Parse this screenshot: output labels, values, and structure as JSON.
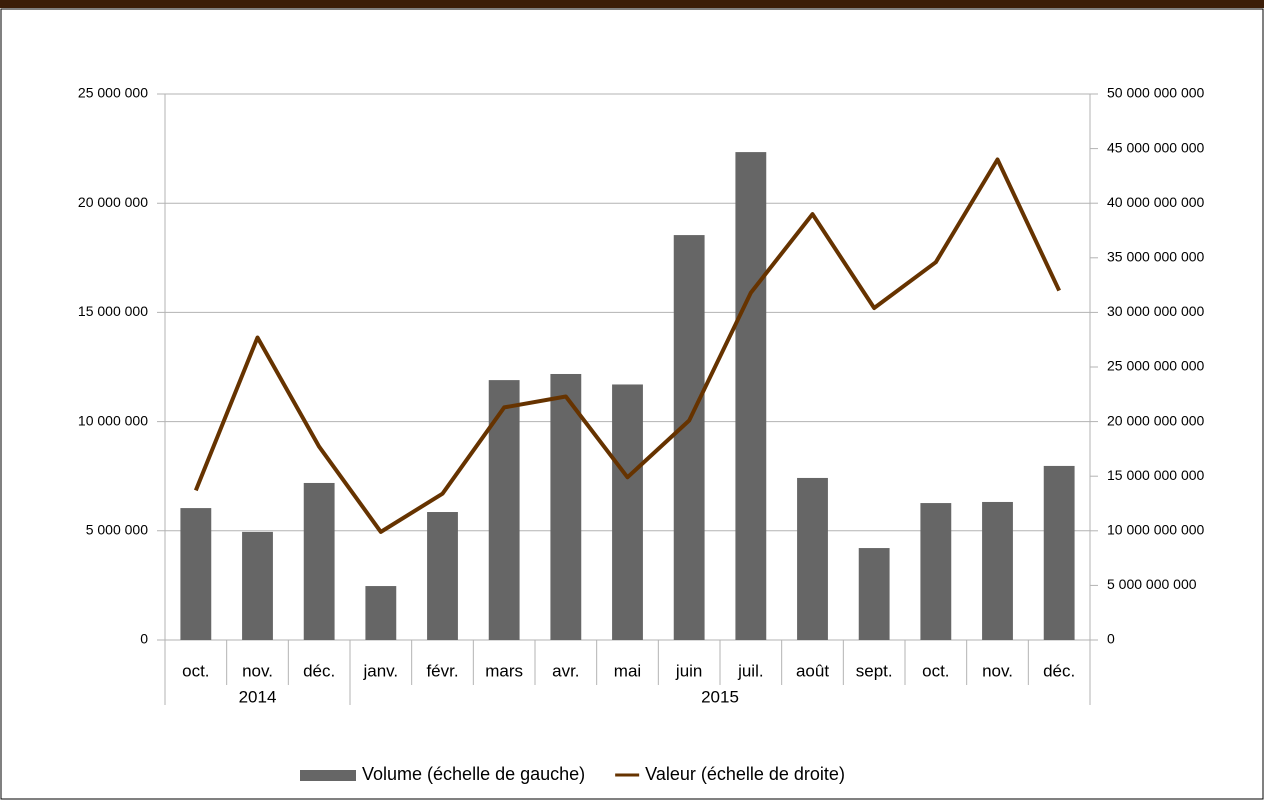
{
  "chart_data": {
    "type": "bar_line",
    "categories": [
      "oct.",
      "nov.",
      "déc.",
      "janv.",
      "févr.",
      "mars",
      "avr.",
      "mai",
      "juin",
      "juil.",
      "août",
      "sept.",
      "oct.",
      "nov.",
      "déc."
    ],
    "category_groups": [
      {
        "label": "2014",
        "span": 3
      },
      {
        "label": "2015",
        "span": 12
      }
    ],
    "series": [
      {
        "name": "Volume (échelle de gauche)",
        "type": "bar",
        "color": "#666666",
        "values": [
          6040000,
          4950000,
          7190000,
          2470000,
          5860000,
          11900000,
          12180000,
          11700000,
          18540000,
          22340000,
          7420000,
          4210000,
          6270000,
          6320000,
          7970000
        ]
      },
      {
        "name": "Valeur (échelle de droite)",
        "type": "line",
        "axis": "y2",
        "color": "#663300",
        "values": [
          13700000000,
          27700000000,
          17700000000,
          9900000000,
          13400000000,
          21300000000,
          22300000000,
          14900000000,
          20100000000,
          31800000000,
          39000000000,
          30400000000,
          34600000000,
          44000000000,
          32000000000
        ]
      }
    ],
    "ylim": [
      0,
      25000000
    ],
    "yticks": [
      0,
      {
        "value": 5000000,
        "label": "5 000 000"
      },
      {
        "value": 10000000,
        "label": "10 000 000"
      },
      {
        "value": 15000000,
        "label": "15 000 000"
      },
      {
        "value": 20000000,
        "label": "20 000 000"
      },
      {
        "value": 25000000,
        "label": "25 000 000"
      }
    ],
    "y2lim": [
      0,
      50000000000
    ],
    "y2ticks": [
      0,
      {
        "value": 5000000000,
        "label": "5 000 000 000"
      },
      {
        "value": 10000000000,
        "label": "10 000 000 000"
      },
      {
        "value": 15000000000,
        "label": "15 000 000 000"
      },
      {
        "value": 20000000000,
        "label": "20 000 000 000"
      },
      {
        "value": 25000000000,
        "label": "25 000 000 000"
      },
      {
        "value": 30000000000,
        "label": "30 000 000 000"
      },
      {
        "value": 35000000000,
        "label": "35 000 000 000"
      },
      {
        "value": 40000000000,
        "label": "40 000 000 000"
      },
      {
        "value": 45000000000,
        "label": "45 000 000 000"
      },
      {
        "value": 50000000000,
        "label": "50 000 000 000"
      }
    ],
    "grid": true,
    "legend": "bottom"
  }
}
